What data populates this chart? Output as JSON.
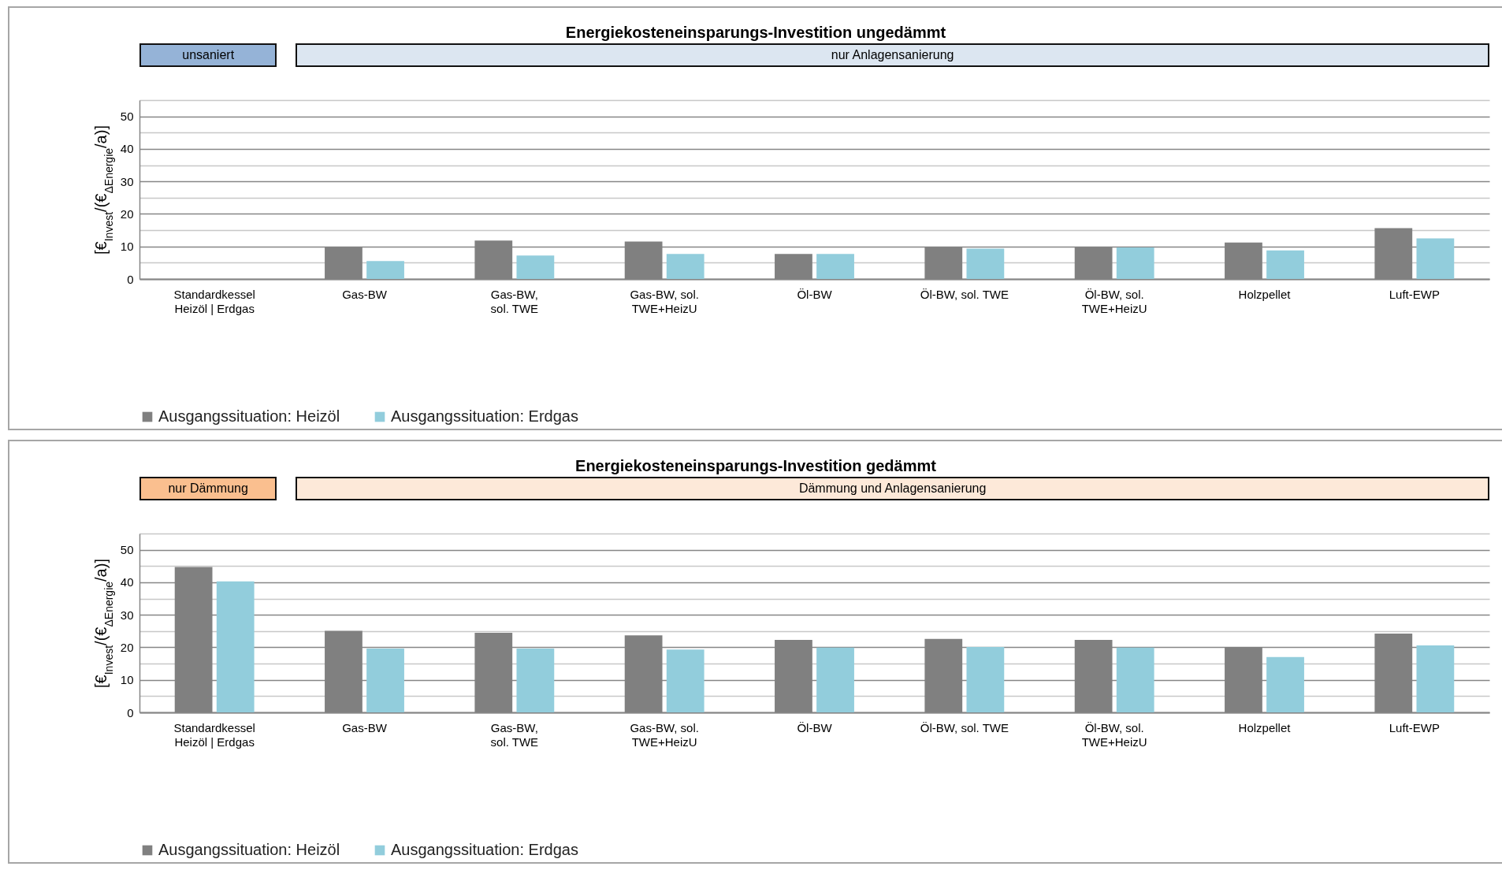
{
  "chart_data": [
    {
      "type": "bar",
      "title": "Energiekosteneinsparungs-Investition ungedämmt",
      "annotations": [
        "unsaniert",
        "nur Anlagensanierung"
      ],
      "ylabel": "[€$_{Invest}$/(€$_{ΔEnergie}$/a)]",
      "categories": [
        "Standardkessel\nHeizöl | Erdgas",
        "Gas-BW",
        "Gas-BW,\nsol. TWE",
        "Gas-BW, sol.\nTWE+HeizU",
        "Öl-BW",
        "Öl-BW, sol. TWE",
        "Öl-BW, sol.\nTWE+HeizU",
        "Holzpellet",
        "Luft-EWP"
      ],
      "series": [
        {
          "name": "Ausgangssituation: Heizöl",
          "color": "#808080",
          "values": [
            null,
            9.9,
            11.8,
            11.5,
            7.7,
            9.9,
            9.9,
            11.2,
            15.6
          ]
        },
        {
          "name": "Ausgangssituation: Erdgas",
          "color": "#92cddc",
          "values": [
            null,
            5.5,
            7.2,
            7.7,
            7.7,
            9.3,
            9.7,
            8.8,
            12.5
          ]
        }
      ],
      "ylim": [
        0,
        55
      ],
      "yticks": [
        0,
        {
          "value": 5,
          "label": null
        },
        10,
        {
          "value": 15,
          "label": null
        },
        20,
        {
          "value": 25,
          "label": null
        },
        30,
        {
          "value": 35,
          "label": null
        },
        40,
        {
          "value": 45,
          "label": null
        },
        50,
        {
          "value": 55,
          "label": null
        }
      ],
      "grid": "y",
      "legend": "bottom"
    },
    {
      "type": "bar",
      "title": "Energiekosteneinsparungs-Investition gedämmt",
      "annotations": [
        "nur Dämmung",
        "Dämmung und Anlagensanierung"
      ],
      "ylabel": "[€$_{Invest}$/(€$_{ΔEnergie}$/a)]",
      "categories": [
        "Standardkessel\nHeizöl | Erdgas",
        "Gas-BW",
        "Gas-BW,\nsol. TWE",
        "Gas-BW, sol.\nTWE+HeizU",
        "Öl-BW",
        "Öl-BW, sol. TWE",
        "Öl-BW, sol.\nTWE+HeizU",
        "Holzpellet",
        "Luft-EWP"
      ],
      "series": [
        {
          "name": "Ausgangssituation: Heizöl",
          "color": "#808080",
          "values": [
            44.7,
            25.1,
            24.5,
            23.7,
            22.3,
            22.6,
            22.3,
            20.1,
            24.2
          ]
        },
        {
          "name": "Ausgangssituation: Erdgas",
          "color": "#92cddc",
          "values": [
            40.3,
            19.6,
            19.6,
            19.3,
            19.9,
            20.1,
            19.9,
            17.0,
            20.6
          ]
        }
      ],
      "ylim": [
        0,
        55
      ],
      "yticks": [
        0,
        {
          "value": 5,
          "label": null
        },
        10,
        {
          "value": 15,
          "label": null
        },
        20,
        {
          "value": 25,
          "label": null
        },
        30,
        {
          "value": 35,
          "label": null
        },
        40,
        {
          "value": 45,
          "label": null
        },
        50,
        {
          "value": 55,
          "label": null
        }
      ],
      "grid": "y",
      "legend": "bottom"
    }
  ]
}
